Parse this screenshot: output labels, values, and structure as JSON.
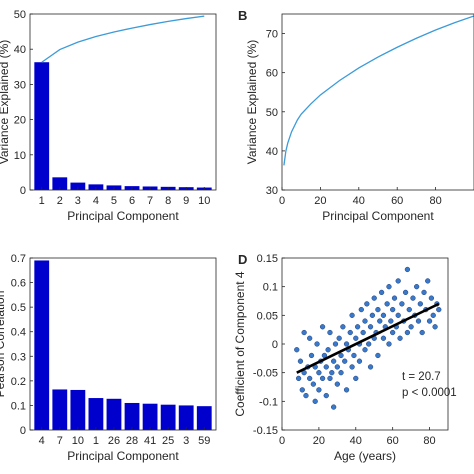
{
  "chart_data": [
    {
      "panel": "",
      "type": "bar",
      "xlabel": "Principal Component",
      "ylabel": "Variance Explained (%)",
      "categories": [
        "1",
        "2",
        "3",
        "4",
        "5",
        "6",
        "7",
        "8",
        "9",
        "10"
      ],
      "values": [
        36.3,
        3.6,
        2.1,
        1.6,
        1.3,
        1.1,
        1.0,
        0.9,
        0.8,
        0.7
      ],
      "line": {
        "x": [
          1,
          2,
          3,
          4,
          5,
          6,
          7,
          8,
          9,
          10
        ],
        "y": [
          36.3,
          39.9,
          42.0,
          43.6,
          44.9,
          46.0,
          47.0,
          47.9,
          48.7,
          49.4
        ]
      },
      "xticks": [
        "1",
        "2",
        "3",
        "4",
        "5",
        "6",
        "7",
        "8",
        "9",
        "10"
      ],
      "ylim": [
        0,
        50
      ],
      "yticks": [
        "0",
        "10",
        "20",
        "30",
        "40",
        "50"
      ],
      "bar_color": "#0000cc",
      "line_color": "#3c9bd8"
    },
    {
      "panel": "B",
      "type": "line",
      "xlabel": "Principal Component",
      "ylabel": "Variance Explained (%)",
      "xlim": [
        0,
        100
      ],
      "ylim": [
        30,
        75
      ],
      "xticks": [
        "0",
        "20",
        "40",
        "60",
        "80"
      ],
      "yticks": [
        "30",
        "40",
        "50",
        "60",
        "70"
      ],
      "series": [
        {
          "x": [
            1,
            2,
            3,
            5,
            8,
            10,
            15,
            20,
            30,
            40,
            50,
            60,
            70,
            80,
            90,
            100
          ],
          "y": [
            36.3,
            39.9,
            42.0,
            44.9,
            47.9,
            49.4,
            52.0,
            54.3,
            58.0,
            61.2,
            64.0,
            66.5,
            68.8,
            70.9,
            72.8,
            74.5
          ]
        }
      ],
      "line_color": "#3c9bd8"
    },
    {
      "panel": "",
      "type": "bar",
      "xlabel": "Principal Component",
      "ylabel": "Pearson Correlation",
      "categories": [
        "4",
        "7",
        "10",
        "1",
        "26",
        "28",
        "41",
        "25",
        "3",
        "59"
      ],
      "values": [
        0.69,
        0.165,
        0.163,
        0.13,
        0.127,
        0.11,
        0.107,
        0.103,
        0.1,
        0.097
      ],
      "ylim": [
        0,
        0.7
      ],
      "yticks": [
        "0",
        "0.1",
        "0.2",
        "0.3",
        "0.4",
        "0.5",
        "0.6",
        "0.7"
      ],
      "bar_color": "#0000cc"
    },
    {
      "panel": "D",
      "type": "scatter",
      "xlabel": "Age (years)",
      "ylabel": "Coefficient of Component 4",
      "xlim": [
        0,
        90
      ],
      "ylim": [
        -0.15,
        0.15
      ],
      "xticks": [
        "0",
        "20",
        "40",
        "60",
        "80"
      ],
      "yticks": [
        "-0.15",
        "-0.1",
        "-0.05",
        "0",
        "0.05",
        "0.1",
        "0.15"
      ],
      "points": [
        [
          8,
          -0.01
        ],
        [
          9,
          -0.06
        ],
        [
          10,
          -0.03
        ],
        [
          11,
          -0.08
        ],
        [
          12,
          -0.05
        ],
        [
          12,
          0.02
        ],
        [
          13,
          -0.09
        ],
        [
          14,
          -0.04
        ],
        [
          15,
          -0.06
        ],
        [
          15,
          0.01
        ],
        [
          16,
          -0.02
        ],
        [
          17,
          -0.07
        ],
        [
          18,
          -0.1
        ],
        [
          18,
          -0.04
        ],
        [
          19,
          0.0
        ],
        [
          20,
          -0.05
        ],
        [
          20,
          -0.08
        ],
        [
          21,
          -0.03
        ],
        [
          22,
          -0.06
        ],
        [
          22,
          0.03
        ],
        [
          23,
          -0.02
        ],
        [
          24,
          -0.09
        ],
        [
          24,
          -0.04
        ],
        [
          25,
          -0.01
        ],
        [
          26,
          -0.06
        ],
        [
          26,
          0.02
        ],
        [
          27,
          -0.05
        ],
        [
          28,
          -0.03
        ],
        [
          28,
          -0.11
        ],
        [
          29,
          0.0
        ],
        [
          30,
          -0.04
        ],
        [
          30,
          -0.07
        ],
        [
          31,
          0.01
        ],
        [
          32,
          -0.02
        ],
        [
          32,
          -0.05
        ],
        [
          33,
          0.03
        ],
        [
          34,
          -0.03
        ],
        [
          35,
          -0.08
        ],
        [
          35,
          0.0
        ],
        [
          36,
          -0.01
        ],
        [
          37,
          0.02
        ],
        [
          38,
          -0.04
        ],
        [
          38,
          0.05
        ],
        [
          39,
          -0.02
        ],
        [
          40,
          0.01
        ],
        [
          40,
          -0.06
        ],
        [
          41,
          0.03
        ],
        [
          42,
          0.0
        ],
        [
          42,
          -0.03
        ],
        [
          43,
          0.06
        ],
        [
          44,
          0.02
        ],
        [
          45,
          -0.01
        ],
        [
          45,
          0.04
        ],
        [
          46,
          0.07
        ],
        [
          47,
          0.0
        ],
        [
          48,
          0.03
        ],
        [
          48,
          -0.04
        ],
        [
          49,
          0.05
        ],
        [
          50,
          0.01
        ],
        [
          50,
          0.08
        ],
        [
          51,
          0.02
        ],
        [
          52,
          -0.02
        ],
        [
          52,
          0.06
        ],
        [
          53,
          0.04
        ],
        [
          54,
          0.09
        ],
        [
          55,
          0.01
        ],
        [
          55,
          0.05
        ],
        [
          56,
          0.03
        ],
        [
          57,
          0.07
        ],
        [
          58,
          0.0
        ],
        [
          58,
          0.1
        ],
        [
          59,
          0.04
        ],
        [
          60,
          0.06
        ],
        [
          60,
          0.02
        ],
        [
          61,
          0.08
        ],
        [
          62,
          0.03
        ],
        [
          63,
          0.05
        ],
        [
          63,
          0.11
        ],
        [
          64,
          0.01
        ],
        [
          65,
          0.07
        ],
        [
          66,
          0.04
        ],
        [
          67,
          0.09
        ],
        [
          68,
          0.02
        ],
        [
          68,
          0.13
        ],
        [
          69,
          0.06
        ],
        [
          70,
          0.03
        ],
        [
          71,
          0.08
        ],
        [
          72,
          0.05
        ],
        [
          73,
          0.1
        ],
        [
          74,
          0.04
        ],
        [
          75,
          0.07
        ],
        [
          76,
          0.02
        ],
        [
          77,
          0.09
        ],
        [
          78,
          0.06
        ],
        [
          79,
          0.11
        ],
        [
          80,
          0.04
        ],
        [
          81,
          0.08
        ],
        [
          82,
          0.05
        ],
        [
          83,
          0.03
        ],
        [
          84,
          0.07
        ],
        [
          85,
          0.06
        ]
      ],
      "fit": {
        "x": [
          8,
          85
        ],
        "y": [
          -0.05,
          0.07
        ]
      },
      "annotations": [
        "t = 20.7",
        "p < 0.0001"
      ],
      "point_color": "#3a78c9",
      "fit_color": "#000000"
    }
  ]
}
